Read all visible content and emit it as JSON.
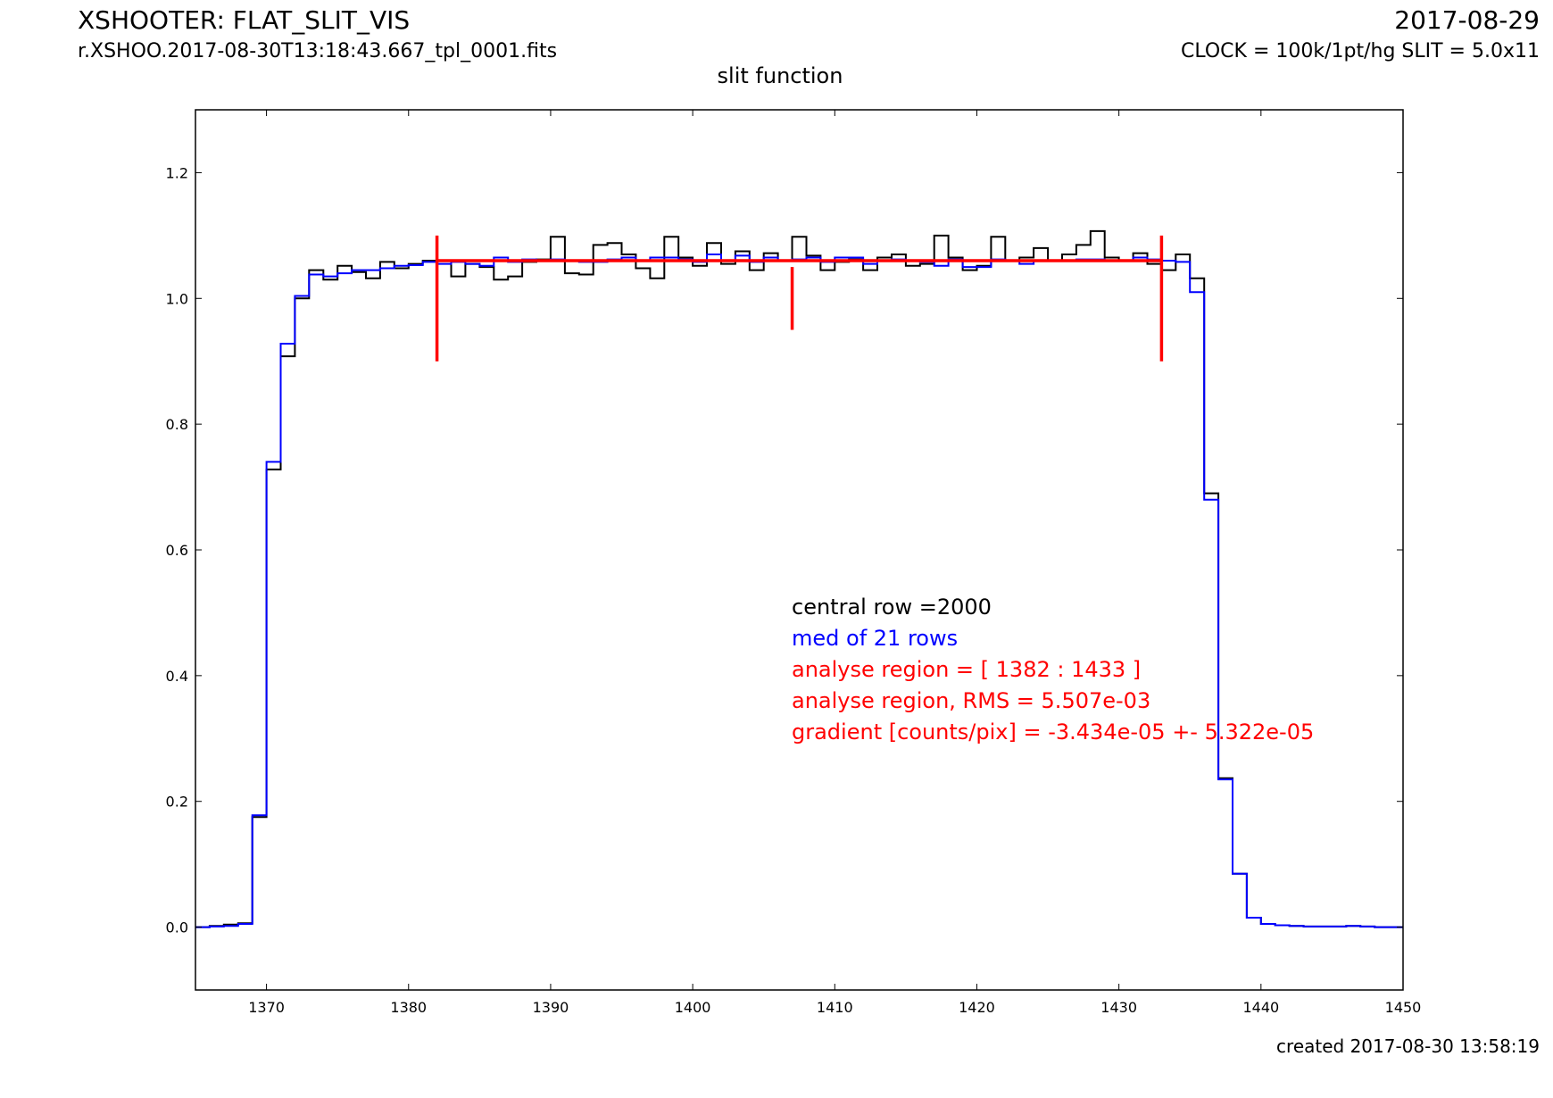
{
  "header": {
    "title": "XSHOOTER: FLAT_SLIT_VIS",
    "filename": "r.XSHOO.2017-08-30T13:18:43.667_tpl_0001.fits",
    "date": "2017-08-29",
    "clock": "CLOCK = 100k/1pt/hg SLIT = 5.0x11",
    "subtitle": "slit function",
    "created": "created 2017-08-30 13:58:19"
  },
  "chart_data": {
    "type": "line",
    "title": "slit function",
    "xlabel": "",
    "ylabel": "",
    "xlim": [
      1365,
      1450
    ],
    "ylim": [
      -0.1,
      1.3
    ],
    "xticks": [
      1370,
      1380,
      1390,
      1400,
      1410,
      1420,
      1430,
      1440,
      1450
    ],
    "yticks": [
      0.0,
      0.2,
      0.4,
      0.6,
      0.8,
      1.0,
      1.2
    ],
    "grid": false,
    "x_start": 1365,
    "series": [
      {
        "color": "#000000",
        "drawstyle": "steps",
        "values": [
          0.0,
          0.002,
          0.004,
          0.006,
          0.175,
          0.728,
          0.908,
          1.0,
          1.045,
          1.03,
          1.052,
          1.042,
          1.032,
          1.058,
          1.048,
          1.055,
          1.06,
          1.06,
          1.035,
          1.055,
          1.05,
          1.03,
          1.035,
          1.058,
          1.062,
          1.098,
          1.04,
          1.038,
          1.085,
          1.088,
          1.07,
          1.048,
          1.032,
          1.098,
          1.065,
          1.052,
          1.088,
          1.055,
          1.075,
          1.045,
          1.072,
          1.06,
          1.098,
          1.068,
          1.045,
          1.058,
          1.062,
          1.045,
          1.065,
          1.07,
          1.052,
          1.055,
          1.1,
          1.065,
          1.045,
          1.052,
          1.098,
          1.06,
          1.065,
          1.08,
          1.06,
          1.07,
          1.085,
          1.107,
          1.065,
          1.06,
          1.072,
          1.055,
          1.045,
          1.07,
          1.032,
          0.69,
          0.237,
          0.085,
          0.015,
          0.005,
          0.003,
          0.002,
          0.001,
          0.001,
          0.001,
          0.002,
          0.001,
          0.0,
          0.0
        ]
      },
      {
        "name": "med of 21 rows",
        "color": "#0000ff",
        "drawstyle": "steps",
        "values": [
          0.0,
          0.001,
          0.002,
          0.005,
          0.178,
          0.74,
          0.928,
          1.004,
          1.038,
          1.035,
          1.04,
          1.045,
          1.045,
          1.048,
          1.052,
          1.053,
          1.058,
          1.055,
          1.058,
          1.055,
          1.052,
          1.065,
          1.058,
          1.062,
          1.06,
          1.062,
          1.06,
          1.058,
          1.058,
          1.062,
          1.065,
          1.06,
          1.065,
          1.065,
          1.062,
          1.058,
          1.07,
          1.06,
          1.068,
          1.058,
          1.065,
          1.06,
          1.062,
          1.065,
          1.058,
          1.065,
          1.065,
          1.055,
          1.06,
          1.062,
          1.06,
          1.058,
          1.052,
          1.062,
          1.05,
          1.05,
          1.062,
          1.06,
          1.055,
          1.06,
          1.06,
          1.06,
          1.062,
          1.062,
          1.06,
          1.06,
          1.065,
          1.062,
          1.06,
          1.058,
          1.01,
          0.68,
          0.235,
          0.085,
          0.015,
          0.005,
          0.003,
          0.002,
          0.001,
          0.001,
          0.001,
          0.002,
          0.001,
          0.0,
          0.0
        ]
      }
    ],
    "fit": {
      "color": "#ff0000",
      "region": [
        1382,
        1433
      ],
      "level": 1.06,
      "markers": [
        {
          "x": 1382,
          "y1": 0.9,
          "y2": 1.1
        },
        {
          "x": 1407,
          "y1": 0.95,
          "y2": 1.05
        },
        {
          "x": 1433,
          "y1": 0.9,
          "y2": 1.1
        }
      ]
    },
    "annotations": [
      {
        "text": "central row =2000",
        "color": "#000000"
      },
      {
        "text": "med of 21 rows",
        "color": "#0000ff"
      },
      {
        "text": "analyse region = [ 1382 : 1433 ]",
        "color": "#ff0000"
      },
      {
        "text": "analyse region, RMS = 5.507e-03",
        "color": "#ff0000"
      },
      {
        "text": "gradient [counts/pix] = -3.434e-05 +- 5.322e-05",
        "color": "#ff0000"
      }
    ]
  }
}
